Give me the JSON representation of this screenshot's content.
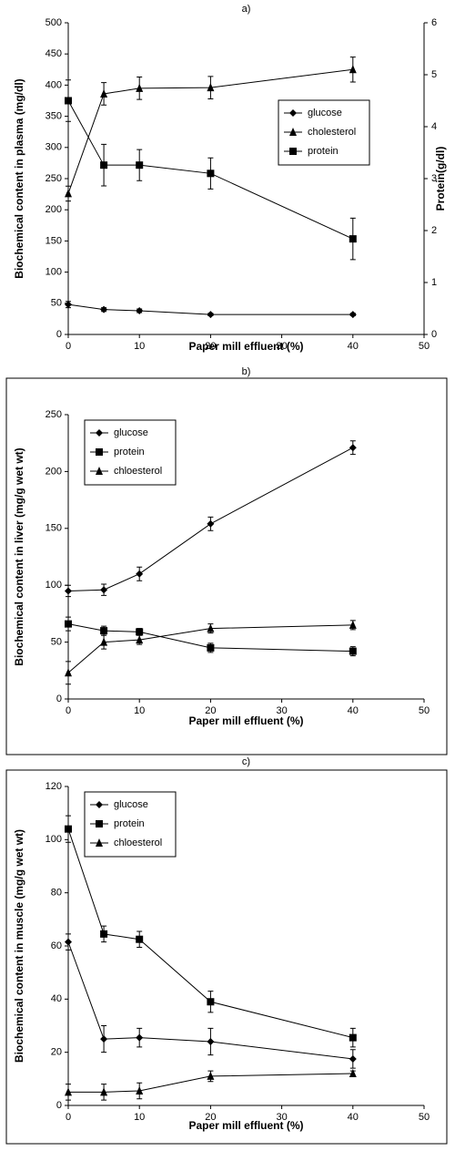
{
  "chart_data": [
    {
      "type": "line",
      "title": "a)",
      "x_label": "Paper mill effluent (%)",
      "y_label": "Biochemical content in plasma (mg/dl)",
      "y2_label": "Protein(g/dl)",
      "x": [
        0,
        5,
        10,
        20,
        40
      ],
      "xlim": [
        0,
        50
      ],
      "xticks": [
        0,
        10,
        20,
        30,
        40,
        50
      ],
      "ylim": [
        0,
        500
      ],
      "yticks": [
        0,
        50,
        100,
        150,
        200,
        250,
        300,
        350,
        400,
        450,
        500
      ],
      "y2lim": [
        0,
        6
      ],
      "y2ticks": [
        0,
        1,
        2,
        3,
        4,
        5,
        6
      ],
      "legend": "upper right",
      "series": [
        {
          "name": "glucose",
          "marker": "diamond",
          "color": "#000000",
          "values": [
            48,
            40,
            38,
            32,
            32
          ],
          "errors": [
            5,
            3,
            3,
            2,
            2
          ]
        },
        {
          "name": "cholesterol",
          "marker": "triangle",
          "color": "#000000",
          "values": [
            226,
            386,
            395,
            396,
            425
          ],
          "errors": [
            12,
            18,
            18,
            18,
            20
          ]
        },
        {
          "name": "protein",
          "marker": "square",
          "color": "#000000",
          "axis": "y2",
          "values": [
            4.5,
            3.26,
            3.26,
            3.1,
            1.84
          ],
          "errors": [
            0.4,
            0.4,
            0.3,
            0.3,
            0.4
          ]
        }
      ]
    },
    {
      "type": "line",
      "title": "b)",
      "x_label": "Paper mill effluent (%)",
      "y_label": "Biochemical content in liver (mg/g wet wt)",
      "x": [
        0,
        5,
        10,
        20,
        40
      ],
      "xlim": [
        0,
        50
      ],
      "xticks": [
        0,
        10,
        20,
        30,
        40,
        50
      ],
      "ylim": [
        0,
        250
      ],
      "yticks": [
        0,
        50,
        100,
        150,
        200,
        250
      ],
      "legend": "upper left",
      "series": [
        {
          "name": "glucose",
          "marker": "diamond",
          "color": "#000000",
          "values": [
            95,
            96,
            110,
            154,
            221
          ],
          "errors": [
            5,
            5,
            6,
            6,
            6
          ]
        },
        {
          "name": "protein",
          "marker": "square",
          "color": "#000000",
          "values": [
            66,
            60,
            59,
            45,
            42
          ],
          "errors": [
            6,
            4,
            3,
            4,
            4
          ]
        },
        {
          "name": "chloesterol",
          "marker": "triangle",
          "color": "#000000",
          "values": [
            23,
            50,
            52,
            62,
            65
          ],
          "errors": [
            10,
            6,
            4,
            4,
            4
          ]
        }
      ]
    },
    {
      "type": "line",
      "title": "c)",
      "x_label": "Paper mill effluent (%)",
      "y_label": "Biochemical content in muscle (mg/g wet wt)",
      "x": [
        0,
        5,
        10,
        20,
        40
      ],
      "xlim": [
        0,
        50
      ],
      "xticks": [
        0,
        10,
        20,
        30,
        40,
        50
      ],
      "ylim": [
        0,
        120
      ],
      "yticks": [
        0,
        20,
        40,
        60,
        80,
        100,
        120
      ],
      "legend": "upper left",
      "series": [
        {
          "name": "glucose",
          "marker": "diamond",
          "color": "#000000",
          "values": [
            61.5,
            25,
            25.5,
            24,
            17.5
          ],
          "errors": [
            3,
            5,
            3.5,
            5,
            3.5
          ]
        },
        {
          "name": "protein",
          "marker": "square",
          "color": "#000000",
          "values": [
            104,
            64.5,
            62.5,
            39,
            25.5
          ],
          "errors": [
            5,
            3,
            3,
            4,
            3.5
          ]
        },
        {
          "name": "chloesterol",
          "marker": "triangle",
          "color": "#000000",
          "values": [
            5,
            5,
            5.5,
            11,
            12
          ],
          "errors": [
            3,
            3,
            3,
            2,
            1
          ]
        }
      ]
    }
  ]
}
